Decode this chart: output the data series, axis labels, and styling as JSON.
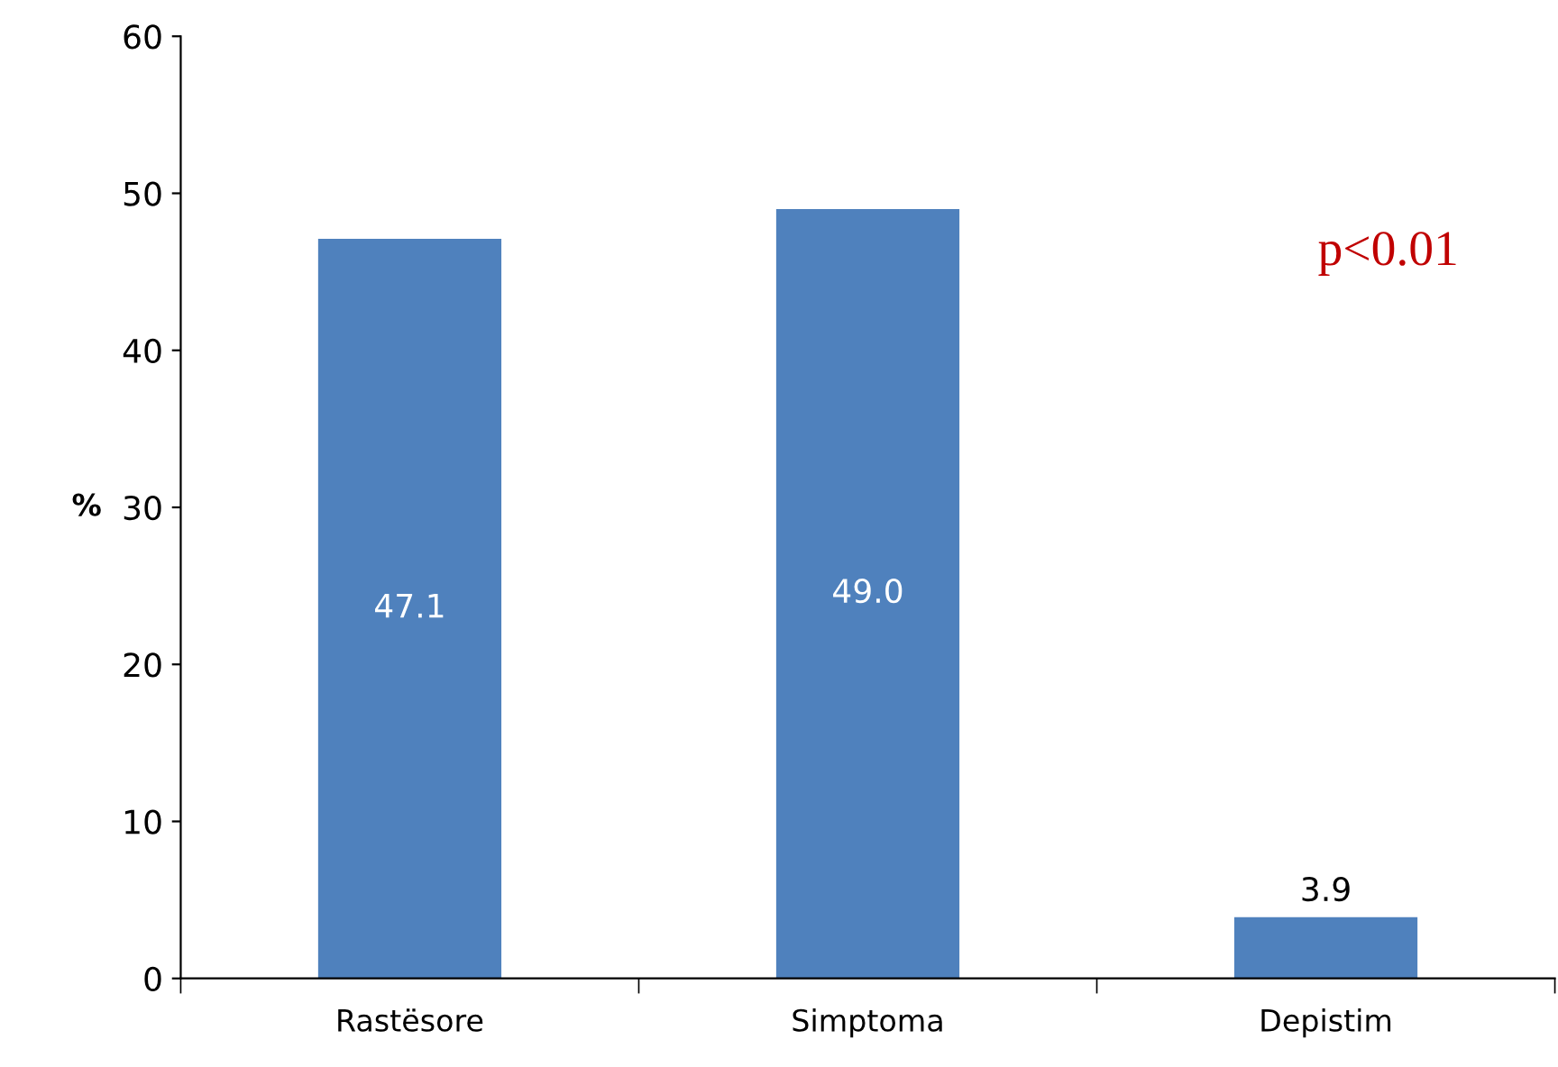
{
  "chart_data": {
    "type": "bar",
    "categories": [
      "Rastësore",
      "Simptoma",
      "Depistim"
    ],
    "values": [
      47.1,
      49.0,
      3.9
    ],
    "value_labels": [
      "47.1",
      "49.0",
      "3.9"
    ],
    "color": "#4f81bd",
    "ylabel": "%",
    "ylim": [
      0,
      60
    ],
    "yticks": [
      0,
      10,
      20,
      30,
      40,
      50,
      60
    ],
    "annotations": [
      "p<0.01"
    ],
    "grid": false,
    "legend": false
  }
}
